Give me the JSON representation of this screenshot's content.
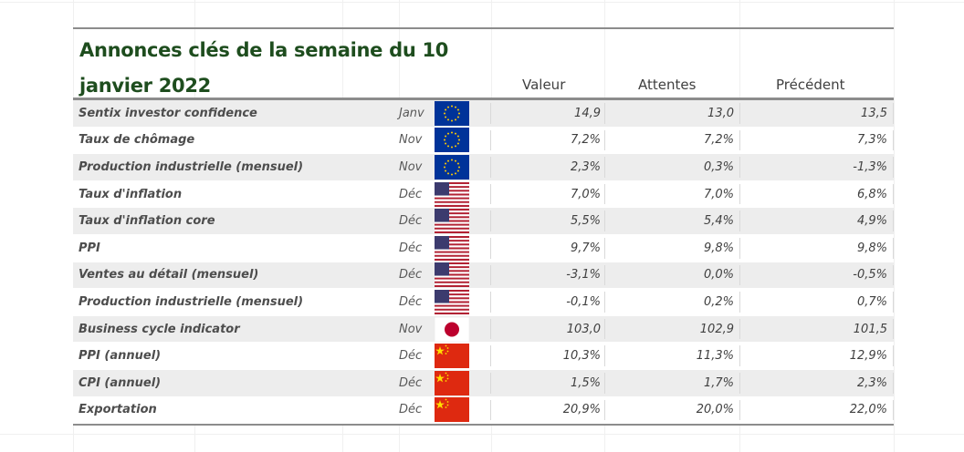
{
  "title": "Annonces clés de la semaine du 10 janvier 2022",
  "columns": {
    "value": "Valeur",
    "expected": "Attentes",
    "previous": "Précédent"
  },
  "rows": [
    {
      "name": "Sentix investor confidence",
      "month": "Janv",
      "flag": "eu-flag-icon",
      "value": "14,9",
      "expected": "13,0",
      "previous": "13,5"
    },
    {
      "name": "Taux de chômage",
      "month": "Nov",
      "flag": "eu-flag-icon",
      "value": "7,2%",
      "expected": "7,2%",
      "previous": "7,3%"
    },
    {
      "name": "Production industrielle (mensuel)",
      "month": "Nov",
      "flag": "eu-flag-icon",
      "value": "2,3%",
      "expected": "0,3%",
      "previous": "-1,3%"
    },
    {
      "name": "Taux d'inflation",
      "month": "Déc",
      "flag": "us-flag-icon",
      "value": "7,0%",
      "expected": "7,0%",
      "previous": "6,8%"
    },
    {
      "name": "Taux d'inflation core",
      "month": "Déc",
      "flag": "us-flag-icon",
      "value": "5,5%",
      "expected": "5,4%",
      "previous": "4,9%"
    },
    {
      "name": "PPI",
      "month": "Déc",
      "flag": "us-flag-icon",
      "value": "9,7%",
      "expected": "9,8%",
      "previous": "9,8%"
    },
    {
      "name": "Ventes au détail (mensuel)",
      "month": "Déc",
      "flag": "us-flag-icon",
      "value": "-3,1%",
      "expected": "0,0%",
      "previous": "-0,5%"
    },
    {
      "name": "Production industrielle (mensuel)",
      "month": "Déc",
      "flag": "us-flag-icon",
      "value": "-0,1%",
      "expected": "0,2%",
      "previous": "0,7%"
    },
    {
      "name": "Business cycle indicator",
      "month": "Nov",
      "flag": "japan-flag-icon",
      "value": "103,0",
      "expected": "102,9",
      "previous": "101,5"
    },
    {
      "name": "PPI (annuel)",
      "month": "Déc",
      "flag": "china-flag-icon",
      "value": "10,3%",
      "expected": "11,3%",
      "previous": "12,9%"
    },
    {
      "name": "CPI (annuel)",
      "month": "Déc",
      "flag": "china-flag-icon",
      "value": "1,5%",
      "expected": "1,7%",
      "previous": "2,3%"
    },
    {
      "name": "Exportation",
      "month": "Déc",
      "flag": "china-flag-icon",
      "value": "20,9%",
      "expected": "20,0%",
      "previous": "22,0%"
    }
  ],
  "colors": {
    "title": "#1e4d1e",
    "eu_blue": "#003399",
    "eu_yellow": "#ffcc00",
    "us_red": "#b22234",
    "us_blue": "#3c3b6e",
    "china_red": "#de2910",
    "japan_red": "#bc002d"
  }
}
